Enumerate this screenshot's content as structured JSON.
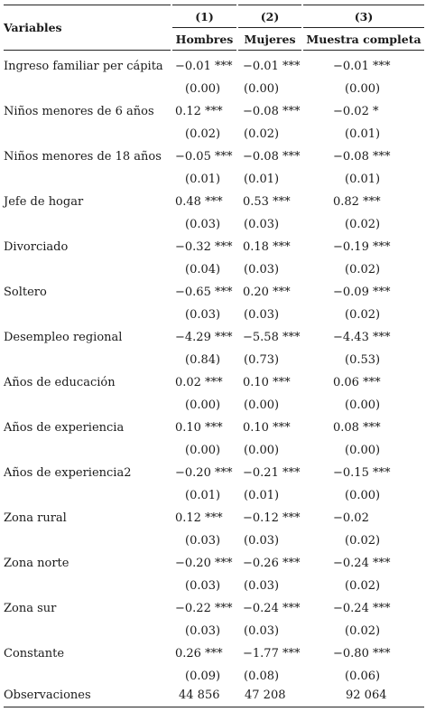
{
  "header": {
    "variables_label": "Variables",
    "columns": [
      {
        "number": "(1)",
        "name": "Hombres"
      },
      {
        "number": "(2)",
        "name": "Mujeres"
      },
      {
        "number": "(3)",
        "name": "Muestra completa"
      }
    ]
  },
  "rows": [
    {
      "label": "Ingreso familiar per cápita",
      "coef": [
        "−0.01 ***",
        "−0.01 ***",
        "−0.01 ***"
      ],
      "se": [
        "(0.00)",
        "(0.00)",
        "(0.00)"
      ]
    },
    {
      "label": "Niños menores de 6 años",
      "coef": [
        "0.12 ***",
        "−0.08 ***",
        "−0.02 *"
      ],
      "se": [
        "(0.02)",
        "(0.02)",
        "(0.01)"
      ]
    },
    {
      "label": "Niños menores de 18 años",
      "coef": [
        "−0.05 ***",
        "−0.08 ***",
        "−0.08 ***"
      ],
      "se": [
        "(0.01)",
        "(0.01)",
        "(0.01)"
      ]
    },
    {
      "label": "Jefe de hogar",
      "coef": [
        "0.48 ***",
        "0.53 ***",
        "0.82 ***"
      ],
      "se": [
        "(0.03)",
        "(0.03)",
        "(0.02)"
      ]
    },
    {
      "label": "Divorciado",
      "coef": [
        "−0.32 ***",
        "0.18 ***",
        "−0.19 ***"
      ],
      "se": [
        "(0.04)",
        "(0.03)",
        "(0.02)"
      ]
    },
    {
      "label": "Soltero",
      "coef": [
        "−0.65 ***",
        "0.20 ***",
        "−0.09 ***"
      ],
      "se": [
        "(0.03)",
        "(0.03)",
        "(0.02)"
      ]
    },
    {
      "label": "Desempleo regional",
      "coef": [
        "−4.29 ***",
        "−5.58 ***",
        "−4.43 ***"
      ],
      "se": [
        "(0.84)",
        "(0.73)",
        "(0.53)"
      ]
    },
    {
      "label": "Años de educación",
      "coef": [
        "0.02 ***",
        "0.10 ***",
        "0.06 ***"
      ],
      "se": [
        "(0.00)",
        "(0.00)",
        "(0.00)"
      ]
    },
    {
      "label": "Años de experiencia",
      "coef": [
        "0.10 ***",
        "0.10 ***",
        "0.08 ***"
      ],
      "se": [
        "(0.00)",
        "(0.00)",
        "(0.00)"
      ]
    },
    {
      "label": "Años de experiencia2",
      "coef": [
        "−0.20 ***",
        "−0.21 ***",
        "−0.15 ***"
      ],
      "se": [
        "(0.01)",
        "(0.01)",
        "(0.00)"
      ]
    },
    {
      "label": "Zona rural",
      "coef": [
        "0.12 ***",
        "−0.12 ***",
        "−0.02"
      ],
      "se": [
        "(0.03)",
        "(0.03)",
        "(0.02)"
      ]
    },
    {
      "label": "Zona norte",
      "coef": [
        "−0.20 ***",
        "−0.26 ***",
        "−0.24 ***"
      ],
      "se": [
        "(0.03)",
        "(0.03)",
        "(0.02)"
      ]
    },
    {
      "label": "Zona sur",
      "coef": [
        "−0.22 ***",
        "−0.24 ***",
        "−0.24 ***"
      ],
      "se": [
        "(0.03)",
        "(0.03)",
        "(0.02)"
      ]
    },
    {
      "label": "Constante",
      "coef": [
        "0.26 ***",
        "−1.77 ***",
        "−0.80 ***"
      ],
      "se": [
        "(0.09)",
        "(0.08)",
        "(0.06)"
      ]
    }
  ],
  "observations": {
    "label": "Observaciones",
    "values": [
      "44 856",
      "47 208",
      "92 064"
    ]
  }
}
